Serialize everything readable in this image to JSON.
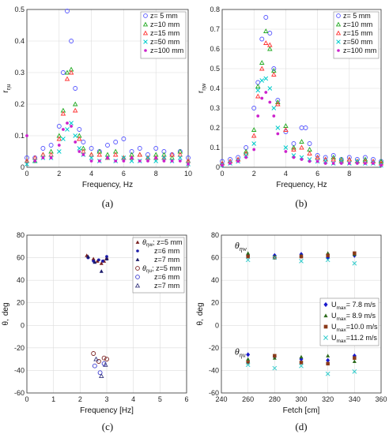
{
  "chart_data": [
    {
      "type": "scatter",
      "caption": "(a)",
      "xlabel": "Frequency, Hz",
      "ylabel_main": "r",
      "ylabel_sub": "ηu",
      "xlim": [
        0,
        10
      ],
      "ylim": [
        0,
        0.5
      ],
      "xticks": [
        0,
        2,
        4,
        6,
        8,
        10
      ],
      "yticks": [
        0,
        0.1,
        0.2,
        0.3,
        0.4,
        0.5
      ],
      "legend_position": "top-right",
      "series": [
        {
          "name": "z= 5 mm",
          "marker": "circle",
          "color": "#5555ff",
          "x": [
            0.0,
            0.5,
            1.0,
            1.5,
            2.0,
            2.25,
            2.5,
            2.75,
            3.0,
            3.25,
            3.5,
            4.0,
            4.5,
            5.0,
            5.5,
            6.0,
            6.5,
            7.0,
            7.5,
            8.0,
            8.5,
            9.0,
            9.5,
            10.0
          ],
          "y": [
            0.03,
            0.03,
            0.06,
            0.07,
            0.13,
            0.3,
            0.495,
            0.4,
            0.25,
            0.12,
            0.08,
            0.06,
            0.05,
            0.07,
            0.08,
            0.09,
            0.05,
            0.06,
            0.04,
            0.06,
            0.05,
            0.04,
            0.05,
            0.03
          ]
        },
        {
          "name": "z=10 mm",
          "marker": "triangle",
          "color": "#22aa22",
          "x": [
            0.0,
            0.5,
            1.0,
            1.5,
            2.0,
            2.25,
            2.5,
            2.75,
            3.0,
            3.25,
            3.5,
            4.0,
            4.5,
            5.0,
            5.5,
            6.0,
            6.5,
            7.0,
            7.5,
            8.0,
            8.5,
            9.0,
            9.5,
            10.0
          ],
          "y": [
            0.02,
            0.02,
            0.04,
            0.05,
            0.1,
            0.18,
            0.3,
            0.31,
            0.2,
            0.1,
            0.06,
            0.04,
            0.05,
            0.04,
            0.05,
            0.03,
            0.04,
            0.04,
            0.03,
            0.04,
            0.04,
            0.03,
            0.05,
            0.02
          ]
        },
        {
          "name": "z=15 mm",
          "marker": "triangle",
          "color": "#ff3333",
          "x": [
            0.0,
            0.5,
            1.0,
            1.5,
            2.0,
            2.25,
            2.5,
            2.75,
            3.0,
            3.25,
            3.5,
            4.0,
            4.5,
            5.0,
            5.5,
            6.0,
            6.5,
            7.0,
            7.5,
            8.0,
            8.5,
            9.0,
            9.5,
            10.0
          ],
          "y": [
            0.02,
            0.03,
            0.04,
            0.04,
            0.09,
            0.17,
            0.28,
            0.3,
            0.18,
            0.09,
            0.05,
            0.04,
            0.04,
            0.03,
            0.04,
            0.03,
            0.03,
            0.04,
            0.03,
            0.03,
            0.03,
            0.04,
            0.04,
            0.02
          ]
        },
        {
          "name": "z=50 mm",
          "marker": "x",
          "color": "#00cccc",
          "x": [
            0.0,
            0.5,
            1.0,
            1.5,
            2.0,
            2.25,
            2.5,
            2.75,
            3.0,
            3.25,
            3.5,
            4.0,
            4.5,
            5.0,
            5.5,
            6.0,
            6.5,
            7.0,
            7.5,
            8.0,
            8.5,
            9.0,
            9.5,
            10.0
          ],
          "y": [
            0.01,
            0.02,
            0.03,
            0.03,
            0.05,
            0.09,
            0.12,
            0.14,
            0.1,
            0.06,
            0.04,
            0.03,
            0.02,
            0.03,
            0.02,
            0.03,
            0.02,
            0.02,
            0.03,
            0.02,
            0.03,
            0.02,
            0.03,
            0.01
          ]
        },
        {
          "name": "z=100 mm",
          "marker": "dot",
          "color": "#cc22cc",
          "x": [
            0.0,
            0.5,
            1.0,
            1.5,
            2.0,
            2.25,
            2.5,
            2.75,
            3.0,
            3.25,
            3.5,
            4.0,
            4.5,
            5.0,
            5.5,
            6.0,
            6.5,
            7.0,
            7.5,
            8.0,
            8.5,
            9.0,
            9.5,
            10.0
          ],
          "y": [
            0.1,
            0.02,
            0.03,
            0.03,
            0.07,
            0.12,
            0.14,
            0.13,
            0.08,
            0.05,
            0.04,
            0.02,
            0.02,
            0.03,
            0.02,
            0.02,
            0.03,
            0.02,
            0.02,
            0.03,
            0.02,
            0.02,
            0.02,
            0.01
          ]
        }
      ]
    },
    {
      "type": "scatter",
      "caption": "(b)",
      "xlabel": "Frequency, Hz",
      "ylabel_main": "r",
      "ylabel_sub": "ηw",
      "xlim": [
        0,
        10
      ],
      "ylim": [
        0,
        0.8
      ],
      "xticks": [
        0,
        2,
        4,
        6,
        8
      ],
      "yticks": [
        0,
        0.1,
        0.2,
        0.3,
        0.4,
        0.5,
        0.6,
        0.7,
        0.8
      ],
      "legend_position": "top-right",
      "series": [
        {
          "name": "z= 5 mm",
          "marker": "circle",
          "color": "#5555ff",
          "x": [
            0.0,
            0.5,
            1.0,
            1.5,
            2.0,
            2.25,
            2.5,
            2.75,
            3.0,
            3.25,
            3.5,
            4.0,
            4.5,
            5.0,
            5.25,
            5.5,
            6.0,
            6.5,
            7.0,
            7.5,
            8.0,
            8.5,
            9.0,
            9.5,
            10.0
          ],
          "y": [
            0.03,
            0.04,
            0.05,
            0.1,
            0.3,
            0.43,
            0.65,
            0.76,
            0.68,
            0.5,
            0.34,
            0.18,
            0.12,
            0.2,
            0.2,
            0.12,
            0.06,
            0.05,
            0.06,
            0.04,
            0.05,
            0.04,
            0.05,
            0.04,
            0.03
          ]
        },
        {
          "name": "z=10 mm",
          "marker": "triangle",
          "color": "#22aa22",
          "x": [
            0.0,
            0.5,
            1.0,
            1.5,
            2.0,
            2.25,
            2.5,
            2.75,
            3.0,
            3.25,
            3.5,
            4.0,
            4.5,
            5.0,
            5.5,
            6.0,
            6.5,
            7.0,
            7.5,
            8.0,
            8.5,
            9.0,
            9.5,
            10.0
          ],
          "y": [
            0.02,
            0.03,
            0.04,
            0.08,
            0.19,
            0.41,
            0.53,
            0.69,
            0.6,
            0.49,
            0.33,
            0.21,
            0.1,
            0.13,
            0.09,
            0.05,
            0.04,
            0.05,
            0.04,
            0.04,
            0.03,
            0.04,
            0.03,
            0.03
          ]
        },
        {
          "name": "z=15 mm",
          "marker": "triangle",
          "color": "#ff3333",
          "x": [
            0.0,
            0.5,
            1.0,
            1.5,
            2.0,
            2.25,
            2.5,
            2.75,
            3.0,
            3.25,
            3.5,
            4.0,
            4.5,
            5.0,
            5.5,
            6.0,
            6.5,
            7.0,
            7.5,
            8.0,
            8.5,
            9.0,
            9.5,
            10.0
          ],
          "y": [
            0.02,
            0.03,
            0.04,
            0.07,
            0.16,
            0.36,
            0.5,
            0.63,
            0.62,
            0.47,
            0.32,
            0.19,
            0.09,
            0.1,
            0.07,
            0.05,
            0.04,
            0.04,
            0.03,
            0.04,
            0.03,
            0.03,
            0.03,
            0.02
          ]
        },
        {
          "name": "z=50 mm",
          "marker": "x",
          "color": "#00cccc",
          "x": [
            0.0,
            0.5,
            1.0,
            1.5,
            2.0,
            2.25,
            2.5,
            2.75,
            3.0,
            3.25,
            3.5,
            4.0,
            4.5,
            5.0,
            5.5,
            6.0,
            6.5,
            7.0,
            7.5,
            8.0,
            8.5,
            9.0,
            9.5,
            10.0
          ],
          "y": [
            0.01,
            0.02,
            0.03,
            0.06,
            0.12,
            0.39,
            0.44,
            0.45,
            0.4,
            0.3,
            0.2,
            0.1,
            0.06,
            0.05,
            0.04,
            0.03,
            0.03,
            0.02,
            0.03,
            0.02,
            0.03,
            0.02,
            0.02,
            0.01
          ]
        },
        {
          "name": "z=100 mm",
          "marker": "dot",
          "color": "#cc22cc",
          "x": [
            0.0,
            0.5,
            1.0,
            1.5,
            2.0,
            2.25,
            2.5,
            2.75,
            3.0,
            3.25,
            3.5,
            4.0,
            4.5,
            5.0,
            5.5,
            6.0,
            6.5,
            7.0,
            7.5,
            8.0,
            8.5,
            9.0,
            9.5,
            10.0
          ],
          "y": [
            0.01,
            0.02,
            0.03,
            0.05,
            0.09,
            0.26,
            0.35,
            0.38,
            0.33,
            0.26,
            0.17,
            0.08,
            0.05,
            0.04,
            0.03,
            0.03,
            0.02,
            0.02,
            0.02,
            0.02,
            0.02,
            0.02,
            0.02,
            0.01
          ]
        }
      ]
    },
    {
      "type": "scatter",
      "caption": "(c)",
      "xlabel": "Frequency [Hz]",
      "ylabel_main": "θ,",
      "ylabel_unit": "deg",
      "xlim": [
        0,
        6
      ],
      "ylim": [
        -60,
        80
      ],
      "xticks": [
        0,
        1,
        2,
        3,
        4,
        5,
        6
      ],
      "yticks": [
        -60,
        -40,
        -20,
        0,
        20,
        40,
        60,
        80
      ],
      "legend_position": "top-right",
      "legend_groups": [
        {
          "symbol": "θ",
          "sub": "ηw",
          "suffix": "; z=5 mm"
        },
        {
          "symbol": "θ",
          "sub": "ηu",
          "suffix": "; z=5 mm"
        }
      ],
      "series": [
        {
          "name": "z=5 mm",
          "group": 0,
          "marker": "tri-filled",
          "color": "#7a2020",
          "x": [
            2.25,
            2.5,
            2.65,
            2.8,
            2.9,
            3.0
          ],
          "y": [
            62,
            59,
            57,
            55,
            57,
            60
          ]
        },
        {
          "name": "z=6 mm",
          "group": 0,
          "marker": "dot",
          "color": "#1a1aa8",
          "x": [
            2.3,
            2.5,
            2.7,
            2.85,
            3.0
          ],
          "y": [
            60,
            57,
            58,
            57,
            61
          ]
        },
        {
          "name": "z=7 mm",
          "group": 0,
          "marker": "tri-filled",
          "color": "#1a1a6a",
          "x": [
            2.3,
            2.55,
            2.8,
            3.0
          ],
          "y": [
            61,
            56,
            48,
            59
          ]
        },
        {
          "name": "z=5 mm",
          "group": 1,
          "marker": "circle",
          "color": "#7a2020",
          "x": [
            2.5,
            2.7,
            2.9,
            3.0
          ],
          "y": [
            -25,
            -32,
            -29,
            -30
          ]
        },
        {
          "name": "z=6 mm",
          "group": 1,
          "marker": "circle",
          "color": "#3a3ad0",
          "x": [
            2.55,
            2.75,
            2.9
          ],
          "y": [
            -36,
            -42,
            -34
          ]
        },
        {
          "name": "z=7 mm",
          "group": 1,
          "marker": "triangle",
          "color": "#3a3a80",
          "x": [
            2.6,
            2.8,
            2.95
          ],
          "y": [
            -30,
            -45,
            -35
          ]
        }
      ]
    },
    {
      "type": "scatter",
      "caption": "(d)",
      "xlabel": "Fetch [cm]",
      "ylabel_main": "θ,",
      "ylabel_unit": "deg",
      "xlim": [
        240,
        360
      ],
      "ylim": [
        -60,
        80
      ],
      "xticks": [
        240,
        260,
        280,
        300,
        320,
        340,
        360
      ],
      "yticks": [
        -60,
        -40,
        -20,
        0,
        20,
        40,
        60,
        80
      ],
      "legend_position": "lower-right",
      "group_labels": [
        {
          "symbol": "θ",
          "sub": "ηw",
          "x": 250,
          "y": 68
        },
        {
          "symbol": "θ",
          "sub": "ηu",
          "x": 250,
          "y": -26
        }
      ],
      "legend_prefix": "U",
      "legend_sub": "max",
      "series": [
        {
          "name": "= 7.8 m/s",
          "marker": "diamond",
          "color": "#1a1acc",
          "x": [
            260,
            280,
            300,
            320,
            340,
            260,
            280,
            300,
            320,
            340
          ],
          "y": [
            62,
            62,
            63,
            60,
            62,
            -26,
            -28,
            -30,
            -31,
            -27
          ]
        },
        {
          "name": "= 8.9 m/s",
          "marker": "tri-filled",
          "color": "#2e6b1e",
          "x": [
            260,
            280,
            300,
            320,
            340,
            260,
            280,
            300,
            320,
            340
          ],
          "y": [
            64,
            61,
            62,
            64,
            63,
            -30,
            -29,
            -28,
            -27,
            -32
          ]
        },
        {
          "name": "=10.0 m/s",
          "marker": "square",
          "color": "#8a3a1a",
          "x": [
            260,
            280,
            300,
            320,
            340,
            260,
            280,
            300,
            320,
            340
          ],
          "y": [
            61,
            60,
            61,
            62,
            64,
            -33,
            -27,
            -33,
            -34,
            -29
          ]
        },
        {
          "name": "=11.2 m/s",
          "marker": "x",
          "color": "#33cccc",
          "x": [
            260,
            280,
            300,
            320,
            340,
            260,
            280,
            300,
            320,
            340
          ],
          "y": [
            58,
            60,
            57,
            58,
            55,
            -35,
            -38,
            -36,
            -43,
            -41
          ]
        }
      ]
    }
  ]
}
